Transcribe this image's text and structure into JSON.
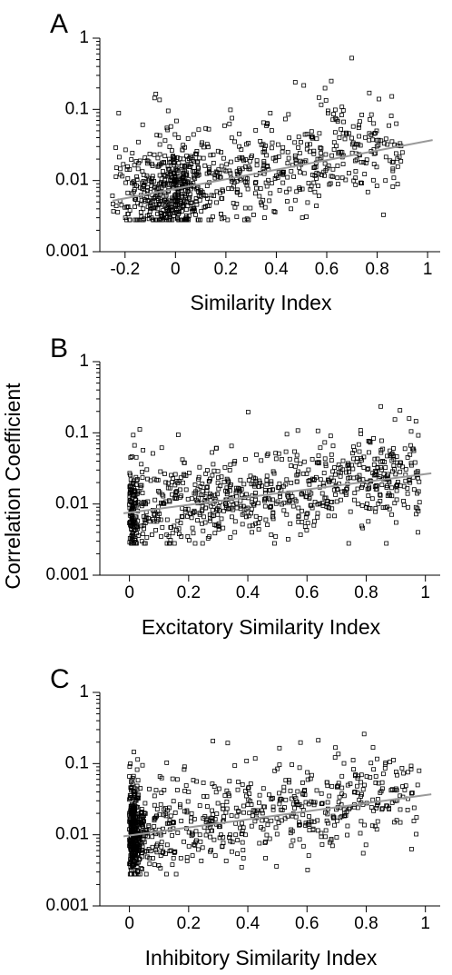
{
  "ylabel": "Correlation Coefficient",
  "chart_data": [
    {
      "type": "scatter",
      "panel_label": "A",
      "xlabel": "Similarity Index",
      "ylabel": "Correlation Coefficient",
      "yscale": "log",
      "xlim": [
        -0.3,
        1.05
      ],
      "ylim": [
        0.001,
        1
      ],
      "xticks": [
        -0.2,
        0,
        0.2,
        0.4,
        0.6,
        0.8,
        1
      ],
      "xtick_labels": [
        "-0.2",
        "0",
        "0.2",
        "0.4",
        "0.6",
        "0.8",
        "1"
      ],
      "yticks": [
        0.001,
        0.01,
        0.1,
        1
      ],
      "ytick_labels": [
        "0.001",
        "0.01",
        "0.1",
        "1"
      ],
      "marker": "open-square",
      "point_count": 900,
      "fit_line": {
        "x": [
          -0.25,
          1.02
        ],
        "y": [
          0.0052,
          0.037
        ],
        "color": "#999999"
      },
      "points": {
        "x": [],
        "y": []
      }
    },
    {
      "type": "scatter",
      "panel_label": "B",
      "xlabel": "Excitatory Similarity Index",
      "ylabel": "Correlation Coefficient",
      "yscale": "log",
      "xlim": [
        -0.1,
        1.05
      ],
      "ylim": [
        0.001,
        1
      ],
      "xticks": [
        0,
        0.2,
        0.4,
        0.6,
        0.8,
        1
      ],
      "xtick_labels": [
        "0",
        "0.2",
        "0.4",
        "0.6",
        "0.8",
        "1"
      ],
      "yticks": [
        0.001,
        0.01,
        0.1,
        1
      ],
      "ytick_labels": [
        "0.001",
        "0.01",
        "0.1",
        "1"
      ],
      "marker": "open-square",
      "point_count": 850,
      "fit_line": {
        "x": [
          -0.02,
          1.02
        ],
        "y": [
          0.0074,
          0.027
        ],
        "color": "#999999"
      },
      "points": {
        "x": [],
        "y": []
      }
    },
    {
      "type": "scatter",
      "panel_label": "C",
      "xlabel": "Inhibitory Similarity Index",
      "ylabel": "Correlation Coefficient",
      "yscale": "log",
      "xlim": [
        -0.1,
        1.05
      ],
      "ylim": [
        0.001,
        1
      ],
      "xticks": [
        0,
        0.2,
        0.4,
        0.6,
        0.8,
        1
      ],
      "xtick_labels": [
        "0",
        "0.2",
        "0.4",
        "0.6",
        "0.8",
        "1"
      ],
      "yticks": [
        0.001,
        0.01,
        0.1,
        1
      ],
      "ytick_labels": [
        "0.001",
        "0.01",
        "0.1",
        "1"
      ],
      "marker": "open-square",
      "point_count": 900,
      "fit_line": {
        "x": [
          -0.02,
          1.02
        ],
        "y": [
          0.0095,
          0.037
        ],
        "color": "#999999"
      },
      "points": {
        "x": [],
        "y": []
      }
    }
  ]
}
